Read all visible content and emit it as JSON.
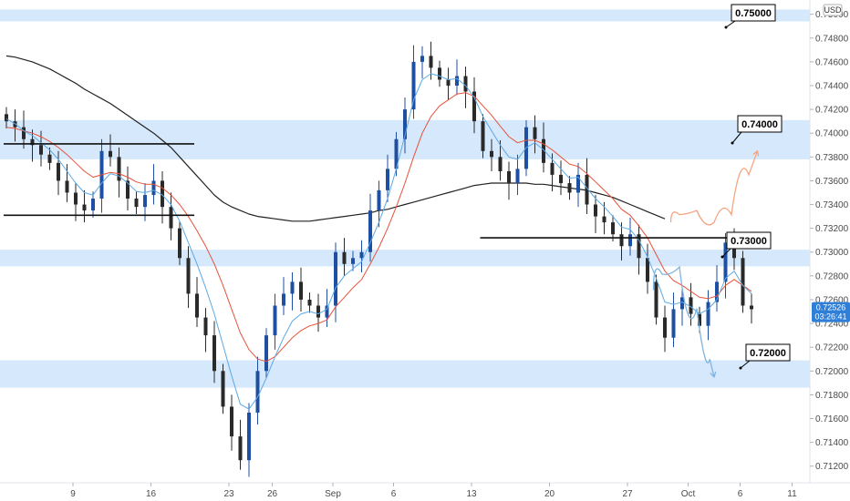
{
  "chart_data": {
    "type": "candlestick",
    "currency": "USD",
    "ylim": [
      0.7106,
      0.7512
    ],
    "yticks": [
      "0.75000",
      "0.74800",
      "0.74600",
      "0.74400",
      "0.74200",
      "0.74000",
      "0.73800",
      "0.73600",
      "0.73400",
      "0.73200",
      "0.73000",
      "0.72800",
      "0.72600",
      "0.72400",
      "0.72200",
      "0.72000",
      "0.71800",
      "0.71600",
      "0.71400",
      "0.71200"
    ],
    "ytick_values": [
      0.75,
      0.748,
      0.746,
      0.744,
      0.742,
      0.74,
      0.738,
      0.736,
      0.734,
      0.732,
      0.73,
      0.728,
      0.726,
      0.724,
      0.722,
      0.72,
      0.718,
      0.716,
      0.714,
      0.712
    ],
    "x_labels": [
      "9",
      "16",
      "23",
      "26",
      "Sep",
      "6",
      "13",
      "20",
      "27",
      "Oct",
      "6",
      "11"
    ],
    "x_label_slots": [
      8,
      17,
      26,
      31,
      38,
      45,
      54,
      63,
      72,
      79,
      85,
      91
    ],
    "x_slot_count": 98,
    "current_price": "0.72526",
    "countdown": "03:26:41",
    "zones": [
      {
        "label": "0.75000",
        "from": 0.7494,
        "to": 0.7504
      },
      {
        "label": "0.74000",
        "from": 0.7378,
        "to": 0.7411
      },
      {
        "label": "0.73000",
        "from": 0.7288,
        "to": 0.7302
      },
      {
        "label": "0.72000",
        "from": 0.7186,
        "to": 0.7209
      }
    ],
    "callouts": [
      "0.75000",
      "0.74000",
      "0.73000",
      "0.72000"
    ],
    "horizontal_levels": [
      {
        "price": 0.7391,
        "x_from": 0,
        "x_to": 22
      },
      {
        "price": 0.7331,
        "x_from": 0,
        "x_to": 22
      },
      {
        "price": 0.7312,
        "x_from": 55,
        "x_to": 84
      }
    ],
    "close_path": [
      0.741,
      0.7405,
      0.7395,
      0.739,
      0.7382,
      0.7375,
      0.736,
      0.735,
      0.734,
      0.7335,
      0.7345,
      0.7385,
      0.738,
      0.736,
      0.7345,
      0.7338,
      0.7348,
      0.736,
      0.7338,
      0.732,
      0.7295,
      0.7265,
      0.7245,
      0.723,
      0.72,
      0.717,
      0.7145,
      0.7125,
      0.7165,
      0.72,
      0.723,
      0.7255,
      0.7265,
      0.7275,
      0.726,
      0.7255,
      0.7245,
      0.7255,
      0.73,
      0.729,
      0.7295,
      0.73,
      0.7335,
      0.7352,
      0.737,
      0.7395,
      0.742,
      0.746,
      0.7465,
      0.7455,
      0.7445,
      0.744,
      0.7448,
      0.7435,
      0.741,
      0.7385,
      0.738,
      0.7368,
      0.7358,
      0.737,
      0.7405,
      0.7395,
      0.7375,
      0.7365,
      0.7358,
      0.735,
      0.7365,
      0.734,
      0.733,
      0.7325,
      0.7315,
      0.7305,
      0.7315,
      0.7295,
      0.7275,
      0.7245,
      0.7228,
      0.7252,
      0.7262,
      0.7248,
      0.7238,
      0.7258,
      0.7275,
      0.7308,
      0.7295,
      0.7255,
      0.7252
    ],
    "ema_fast": [
      0.7412,
      0.7408,
      0.7402,
      0.7398,
      0.7392,
      0.7386,
      0.7378,
      0.7368,
      0.7358,
      0.735,
      0.7348,
      0.7358,
      0.7366,
      0.7364,
      0.7358,
      0.7351,
      0.735,
      0.7352,
      0.7348,
      0.734,
      0.7326,
      0.7308,
      0.729,
      0.727,
      0.7248,
      0.7222,
      0.7196,
      0.7172,
      0.7168,
      0.7178,
      0.7194,
      0.7212,
      0.7228,
      0.7242,
      0.7248,
      0.725,
      0.7248,
      0.7252,
      0.727,
      0.728,
      0.7286,
      0.7292,
      0.7308,
      0.7325,
      0.7345,
      0.737,
      0.7398,
      0.7428,
      0.7445,
      0.745,
      0.7448,
      0.7445,
      0.7446,
      0.744,
      0.743,
      0.7414,
      0.7402,
      0.739,
      0.738,
      0.7378,
      0.7388,
      0.7392,
      0.7386,
      0.7378,
      0.737,
      0.7362,
      0.7363,
      0.7354,
      0.7345,
      0.7338,
      0.733,
      0.7321,
      0.7319,
      0.731,
      0.7296,
      0.7278,
      0.7258,
      0.7256,
      0.7258,
      0.7254,
      0.7248,
      0.7252,
      0.726,
      0.7278,
      0.7284,
      0.7272,
      0.7265
    ],
    "ema_mid": [
      0.7405,
      0.7404,
      0.7402,
      0.74,
      0.7397,
      0.7393,
      0.7388,
      0.7382,
      0.7375,
      0.7368,
      0.7363,
      0.7365,
      0.7367,
      0.7366,
      0.7363,
      0.7359,
      0.7357,
      0.7357,
      0.7354,
      0.7348,
      0.734,
      0.733,
      0.7318,
      0.7305,
      0.729,
      0.7272,
      0.7252,
      0.7232,
      0.7218,
      0.721,
      0.7208,
      0.7212,
      0.722,
      0.7228,
      0.7234,
      0.7238,
      0.724,
      0.7243,
      0.7254,
      0.7262,
      0.727,
      0.7277,
      0.729,
      0.7304,
      0.732,
      0.7338,
      0.7358,
      0.738,
      0.74,
      0.7414,
      0.7423,
      0.7428,
      0.7433,
      0.7434,
      0.7431,
      0.7423,
      0.7415,
      0.7406,
      0.7397,
      0.7392,
      0.7394,
      0.7394,
      0.7391,
      0.7386,
      0.738,
      0.7374,
      0.7372,
      0.7366,
      0.7359,
      0.7352,
      0.7345,
      0.7336,
      0.7331,
      0.7322,
      0.7312,
      0.7298,
      0.7284,
      0.7276,
      0.7272,
      0.7267,
      0.7262,
      0.7261,
      0.7263,
      0.7272,
      0.7277,
      0.7272,
      0.7267
    ],
    "sma_slow": [
      0.7465,
      0.7464,
      0.7462,
      0.746,
      0.7457,
      0.7454,
      0.745,
      0.7446,
      0.7442,
      0.7437,
      0.7433,
      0.7429,
      0.7425,
      0.742,
      0.7415,
      0.741,
      0.7405,
      0.74,
      0.7394,
      0.7388,
      0.738,
      0.7372,
      0.7364,
      0.7356,
      0.7348,
      0.7342,
      0.7338,
      0.7335,
      0.7332,
      0.733,
      0.7329,
      0.7328,
      0.7327,
      0.7326,
      0.7326,
      0.7326,
      0.7327,
      0.7328,
      0.7329,
      0.733,
      0.7331,
      0.7332,
      0.7333,
      0.7335,
      0.7336,
      0.7338,
      0.734,
      0.7342,
      0.7344,
      0.7346,
      0.7348,
      0.735,
      0.7352,
      0.7354,
      0.7356,
      0.7357,
      0.7358,
      0.7358,
      0.7358,
      0.7358,
      0.7358,
      0.7357,
      0.7357,
      0.7356,
      0.7355,
      0.7354,
      0.7353,
      0.7352,
      0.735,
      0.7348,
      0.7346,
      0.7343,
      0.734,
      0.7337,
      0.7334,
      0.7331,
      0.7328
    ],
    "scenarios": [
      {
        "name": "bullish",
        "color": "#f4a582",
        "points": [
          [
            77,
            0.7325
          ],
          [
            79,
            0.7338
          ],
          [
            81,
            0.7332
          ],
          [
            83,
            0.7318
          ],
          [
            85,
            0.7345
          ],
          [
            87,
            0.7385
          ]
        ]
      },
      {
        "name": "bearish",
        "color": "#7fb3e0",
        "points": [
          [
            75,
            0.7268
          ],
          [
            77,
            0.7295
          ],
          [
            79,
            0.728
          ],
          [
            81,
            0.7225
          ],
          [
            82,
            0.7195
          ]
        ]
      }
    ]
  },
  "colors": {
    "zone": "#d6e8fb",
    "up": "#1e4fa3",
    "down": "#2a2a2a",
    "ema_fast": "#5aa9e6",
    "ema_mid": "#e8513a",
    "sma_slow": "#222222",
    "price_tag": "#2f7fd8"
  }
}
